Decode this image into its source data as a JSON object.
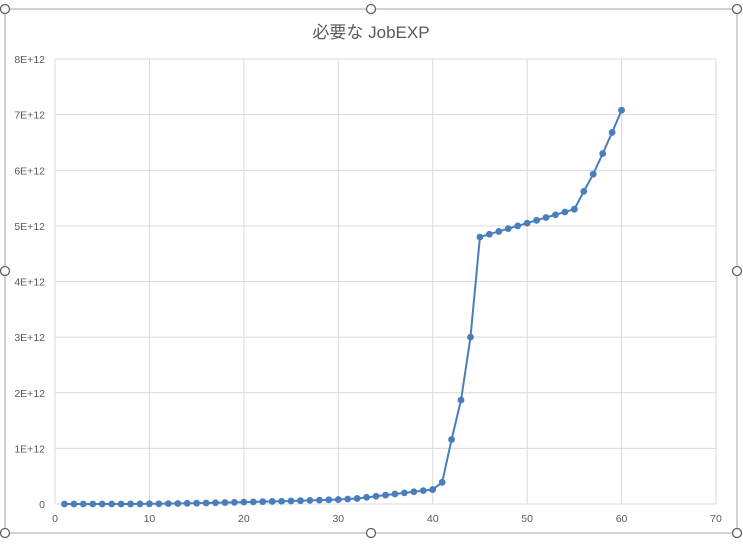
{
  "chart_data": {
    "type": "line",
    "title": "必要な JobEXP",
    "xlabel": "",
    "ylabel": "",
    "xlim": [
      0,
      70
    ],
    "ylim": [
      0,
      8000000000000
    ],
    "x_ticks": [
      0,
      10,
      20,
      30,
      40,
      50,
      60,
      70
    ],
    "y_ticks": [
      0,
      1000000000000,
      2000000000000,
      3000000000000,
      4000000000000,
      5000000000000,
      6000000000000,
      7000000000000,
      8000000000000
    ],
    "x_tick_labels": [
      "0",
      "10",
      "20",
      "30",
      "40",
      "50",
      "60",
      "70"
    ],
    "y_tick_labels": [
      "0",
      "1E+12",
      "2E+12",
      "3E+12",
      "4E+12",
      "5E+12",
      "6E+12",
      "7E+12",
      "8E+12"
    ],
    "grid": true,
    "legend": "none",
    "series_color": "#4a7ebb",
    "series": [
      {
        "x": [
          1,
          2,
          3,
          4,
          5,
          6,
          7,
          8,
          9,
          10,
          11,
          12,
          13,
          14,
          15,
          16,
          17,
          18,
          19,
          20,
          21,
          22,
          23,
          24,
          25,
          26,
          27,
          28,
          29,
          30,
          31,
          32,
          33,
          34,
          35,
          36,
          37,
          38,
          39,
          40,
          41,
          42,
          43,
          44,
          45,
          46,
          47,
          48,
          49,
          50,
          51,
          52,
          53,
          54,
          55,
          56,
          57,
          58,
          59,
          60
        ],
        "values": [
          1000000,
          5000000,
          20000000,
          60000000,
          150000000,
          300000000,
          600000000,
          1000000000,
          2000000000,
          3500000000,
          5000000000,
          7000000000,
          9000000000,
          12000000000,
          15000000000,
          18000000000,
          22000000000,
          26000000000,
          30000000000,
          34000000000,
          38000000000,
          42000000000,
          46000000000,
          50000000000,
          55000000000,
          60000000000,
          65000000000,
          70000000000,
          75000000000,
          80000000000,
          90000000000,
          100000000000,
          120000000000,
          140000000000,
          160000000000,
          180000000000,
          200000000000,
          220000000000,
          240000000000,
          260000000000,
          390000000000,
          1160000000000,
          1870000000000,
          3000000000000,
          4800000000000,
          4850000000000,
          4900000000000,
          4950000000000,
          5000000000000,
          5050000000000,
          5100000000000,
          5150000000000,
          5200000000000,
          5250000000000,
          5300000000000,
          5620000000000,
          5930000000000,
          6300000000000,
          6680000000000,
          7080000000000
        ]
      }
    ]
  }
}
